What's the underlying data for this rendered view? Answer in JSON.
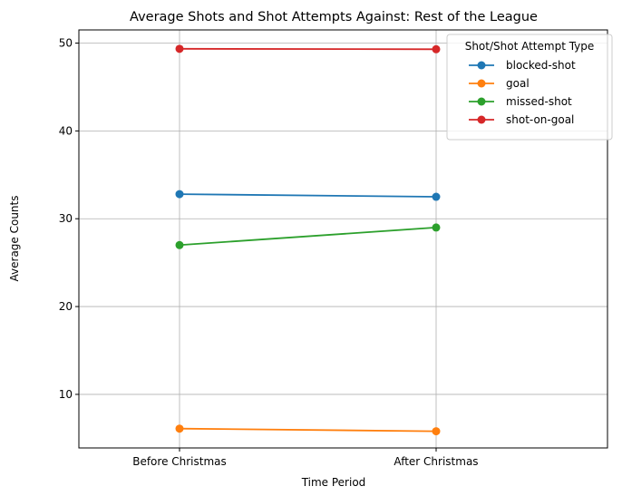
{
  "chart_data": {
    "type": "line",
    "title": "Average Shots and Shot Attempts Against: Rest of the League",
    "xlabel": "Time Period",
    "ylabel": "Average Counts",
    "categories": [
      "Before Christmas",
      "After Christmas"
    ],
    "ylim": [
      3.9,
      51.5
    ],
    "yticks": [
      10,
      20,
      30,
      40,
      50
    ],
    "grid": true,
    "legend": {
      "title": "Shot/Shot Attempt Type",
      "placement": "top-right"
    },
    "series": [
      {
        "name": "blocked-shot",
        "color": "#1f77b4",
        "values": [
          32.8,
          32.5
        ]
      },
      {
        "name": "goal",
        "color": "#ff7f0e",
        "values": [
          6.1,
          5.8
        ]
      },
      {
        "name": "missed-shot",
        "color": "#2ca02c",
        "values": [
          27.0,
          29.0
        ]
      },
      {
        "name": "shot-on-goal",
        "color": "#d62728",
        "values": [
          49.35,
          49.3
        ]
      }
    ]
  }
}
